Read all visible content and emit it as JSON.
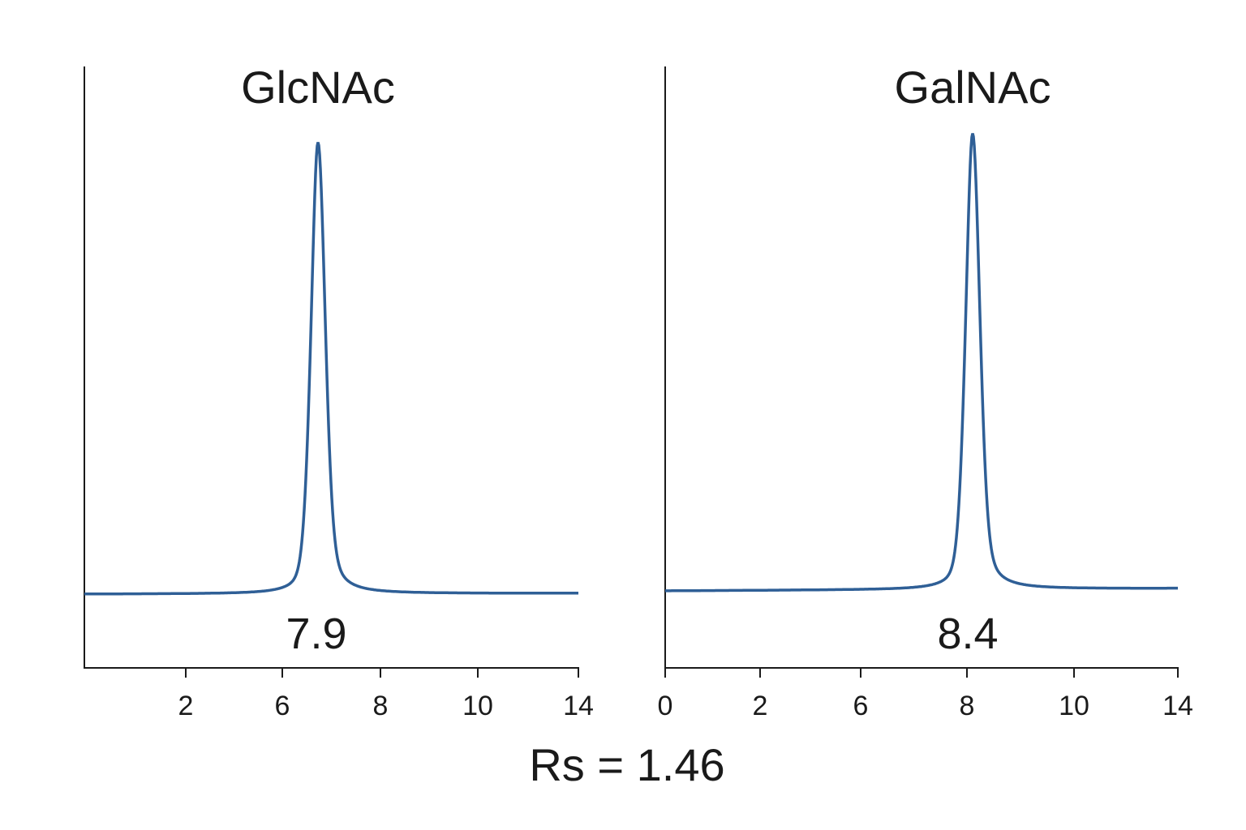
{
  "chart_data": [
    {
      "type": "line",
      "title": "GlcNAc",
      "x_tick_labels": [
        "2",
        "6",
        "8",
        "10",
        "14"
      ],
      "peak_annotation": "7.9",
      "relative_peak_height": 1.0,
      "line_color": "#2f5f96",
      "grid": false
    },
    {
      "type": "line",
      "title": "GalNAc",
      "x_tick_labels": [
        "0",
        "2",
        "6",
        "8",
        "10",
        "14"
      ],
      "peak_annotation": "8.4",
      "relative_peak_height": 1.01,
      "line_color": "#2f5f96",
      "grid": false
    }
  ],
  "footer": {
    "resolution_label": "Rs = 1.46"
  }
}
